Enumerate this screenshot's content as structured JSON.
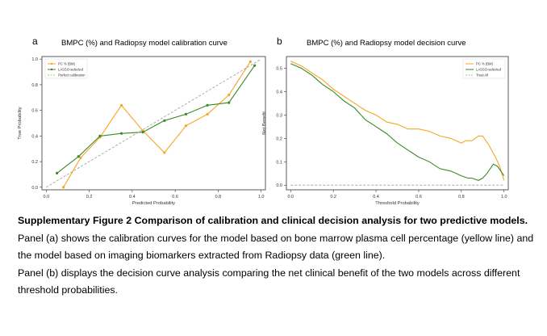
{
  "panels": [
    {
      "letter": "a",
      "title": "BMPC (%) and Radiopsy model calibration curve"
    },
    {
      "letter": "b",
      "title": "BMPC (%) and Radiopsy model decision curve"
    }
  ],
  "caption": {
    "heading": "Supplementary Figure 2 Comparison of calibration and clinical decision analysis for two predictive models.",
    "para1": "Panel (a) shows the calibration curves for the model based on bone marrow plasma cell percentage (yellow line) and the model based on imaging biomarkers extracted from Radiopsy data (green line).",
    "para2": "Panel (b) displays the decision curve analysis comparing the net clinical benefit of the two models across different threshold probabilities."
  },
  "colors": {
    "bmpc": "#f5a623",
    "lasso": "#3a8a28",
    "reference": "#9a9a9a"
  },
  "chart_data": [
    {
      "type": "line",
      "title": "BMPC (%) and Radiopsy model calibration curve",
      "xlabel": "Predicted Probability",
      "ylabel": "True Probability",
      "xlim": [
        -0.02,
        1.02
      ],
      "ylim": [
        -0.02,
        1.02
      ],
      "xticks": [
        "0.0",
        "0.2",
        "0.4",
        "0.6",
        "0.8",
        "1.0"
      ],
      "yticks": [
        "0.0",
        "0.2",
        "0.4",
        "0.6",
        "0.8",
        "1.0"
      ],
      "grid": false,
      "legend_position": "top-left",
      "series": [
        {
          "name": "PC % (BM)",
          "x": [
            0.08,
            0.16,
            0.25,
            0.35,
            0.45,
            0.55,
            0.65,
            0.75,
            0.85,
            0.95
          ],
          "y": [
            0.0,
            0.23,
            0.39,
            0.64,
            0.44,
            0.27,
            0.48,
            0.57,
            0.72,
            0.98
          ]
        },
        {
          "name": "LASSO-selected",
          "x": [
            0.05,
            0.15,
            0.25,
            0.35,
            0.45,
            0.55,
            0.65,
            0.75,
            0.85,
            0.97
          ],
          "y": [
            0.11,
            0.24,
            0.4,
            0.42,
            0.43,
            0.52,
            0.57,
            0.64,
            0.66,
            0.95
          ]
        },
        {
          "name": "Perfect calibration",
          "x": [
            0,
            1
          ],
          "y": [
            0,
            1
          ]
        }
      ]
    },
    {
      "type": "line",
      "title": "BMPC (%) and Radiopsy model decision curve",
      "xlabel": "Threshold Probability",
      "ylabel": "Net Benefit",
      "xlim": [
        -0.02,
        1.02
      ],
      "ylim": [
        -0.02,
        0.55
      ],
      "xticks": [
        "0.0",
        "0.2",
        "0.4",
        "0.6",
        "0.8",
        "1.0"
      ],
      "yticks": [
        "0.0",
        "0.1",
        "0.2",
        "0.3",
        "0.4",
        "0.5"
      ],
      "grid": false,
      "legend_position": "top-right",
      "series": [
        {
          "name": "PC % (BM)",
          "x": [
            0.0,
            0.05,
            0.1,
            0.15,
            0.2,
            0.25,
            0.3,
            0.35,
            0.4,
            0.45,
            0.5,
            0.55,
            0.6,
            0.65,
            0.7,
            0.75,
            0.8,
            0.82,
            0.85,
            0.88,
            0.9,
            0.93,
            0.96,
            0.98,
            1.0
          ],
          "y": [
            0.53,
            0.51,
            0.48,
            0.45,
            0.41,
            0.38,
            0.35,
            0.32,
            0.3,
            0.27,
            0.26,
            0.24,
            0.24,
            0.23,
            0.21,
            0.2,
            0.18,
            0.19,
            0.19,
            0.21,
            0.21,
            0.17,
            0.12,
            0.08,
            0.02
          ]
        },
        {
          "name": "LASSO-selected",
          "x": [
            0.0,
            0.05,
            0.1,
            0.15,
            0.2,
            0.25,
            0.3,
            0.35,
            0.4,
            0.45,
            0.5,
            0.55,
            0.6,
            0.65,
            0.7,
            0.75,
            0.8,
            0.83,
            0.85,
            0.88,
            0.9,
            0.92,
            0.95,
            0.97,
            1.0
          ],
          "y": [
            0.52,
            0.5,
            0.47,
            0.43,
            0.4,
            0.36,
            0.33,
            0.28,
            0.25,
            0.22,
            0.18,
            0.15,
            0.12,
            0.1,
            0.07,
            0.06,
            0.04,
            0.03,
            0.03,
            0.02,
            0.03,
            0.05,
            0.09,
            0.08,
            0.04
          ]
        },
        {
          "name": "Treat All",
          "x": [
            0,
            1
          ],
          "y": [
            0,
            0
          ]
        }
      ]
    }
  ]
}
